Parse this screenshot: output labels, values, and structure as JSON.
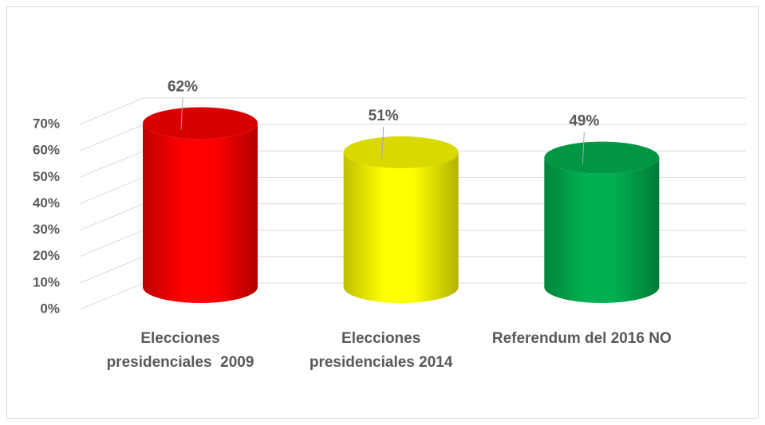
{
  "chart_data": {
    "type": "bar3d",
    "categories": [
      "Elecciones presidenciales  2009",
      "Elecciones presidenciales 2014",
      "Referendum del 2016 NO"
    ],
    "values": [
      62,
      51,
      49
    ],
    "value_labels": [
      "62%",
      "51%",
      "49%"
    ],
    "colors": [
      "#ff0000",
      "#ffff00",
      "#00b050"
    ],
    "ylim": [
      0,
      80
    ],
    "yticks": [
      {
        "value": 0,
        "label": "0%"
      },
      {
        "value": 10,
        "label": "10%"
      },
      {
        "value": 20,
        "label": "20%"
      },
      {
        "value": 30,
        "label": "30%"
      },
      {
        "value": 40,
        "label": "40%"
      },
      {
        "value": 50,
        "label": "50%"
      },
      {
        "value": 60,
        "label": "60%"
      },
      {
        "value": 70,
        "label": "70%"
      }
    ],
    "grid": true
  }
}
